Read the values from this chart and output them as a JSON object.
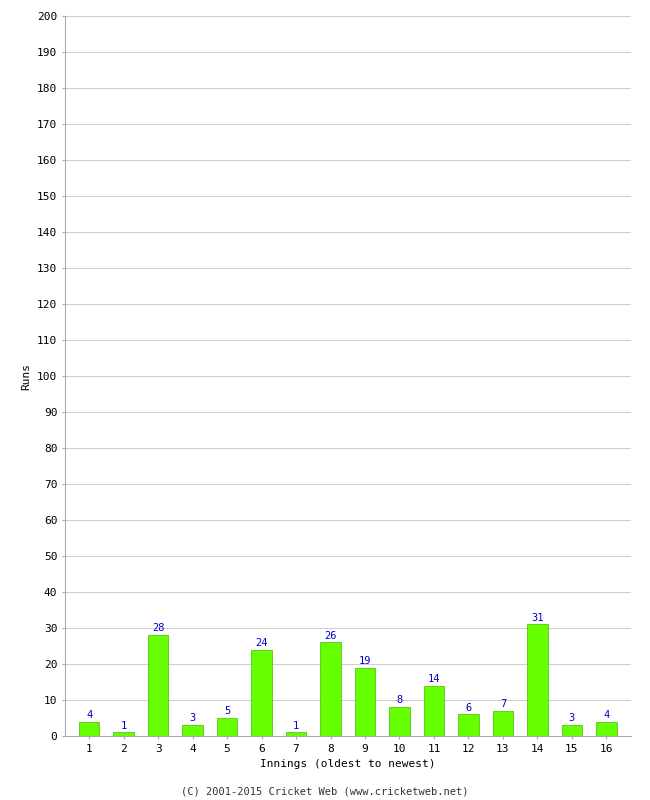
{
  "innings": [
    1,
    2,
    3,
    4,
    5,
    6,
    7,
    8,
    9,
    10,
    11,
    12,
    13,
    14,
    15,
    16
  ],
  "runs": [
    4,
    1,
    28,
    3,
    5,
    24,
    1,
    26,
    19,
    8,
    14,
    6,
    7,
    31,
    3,
    4
  ],
  "bar_color": "#66ff00",
  "bar_edge_color": "#44bb00",
  "label_color": "#0000cc",
  "ylabel": "Runs",
  "xlabel": "Innings (oldest to newest)",
  "ylim": [
    0,
    200
  ],
  "yticks": [
    0,
    10,
    20,
    30,
    40,
    50,
    60,
    70,
    80,
    90,
    100,
    110,
    120,
    130,
    140,
    150,
    160,
    170,
    180,
    190,
    200
  ],
  "footer": "(C) 2001-2015 Cricket Web (www.cricketweb.net)",
  "background_color": "#ffffff",
  "grid_color": "#cccccc",
  "label_fontsize": 7.5,
  "axis_fontsize": 8,
  "footer_fontsize": 7.5,
  "ylabel_fontsize": 8
}
